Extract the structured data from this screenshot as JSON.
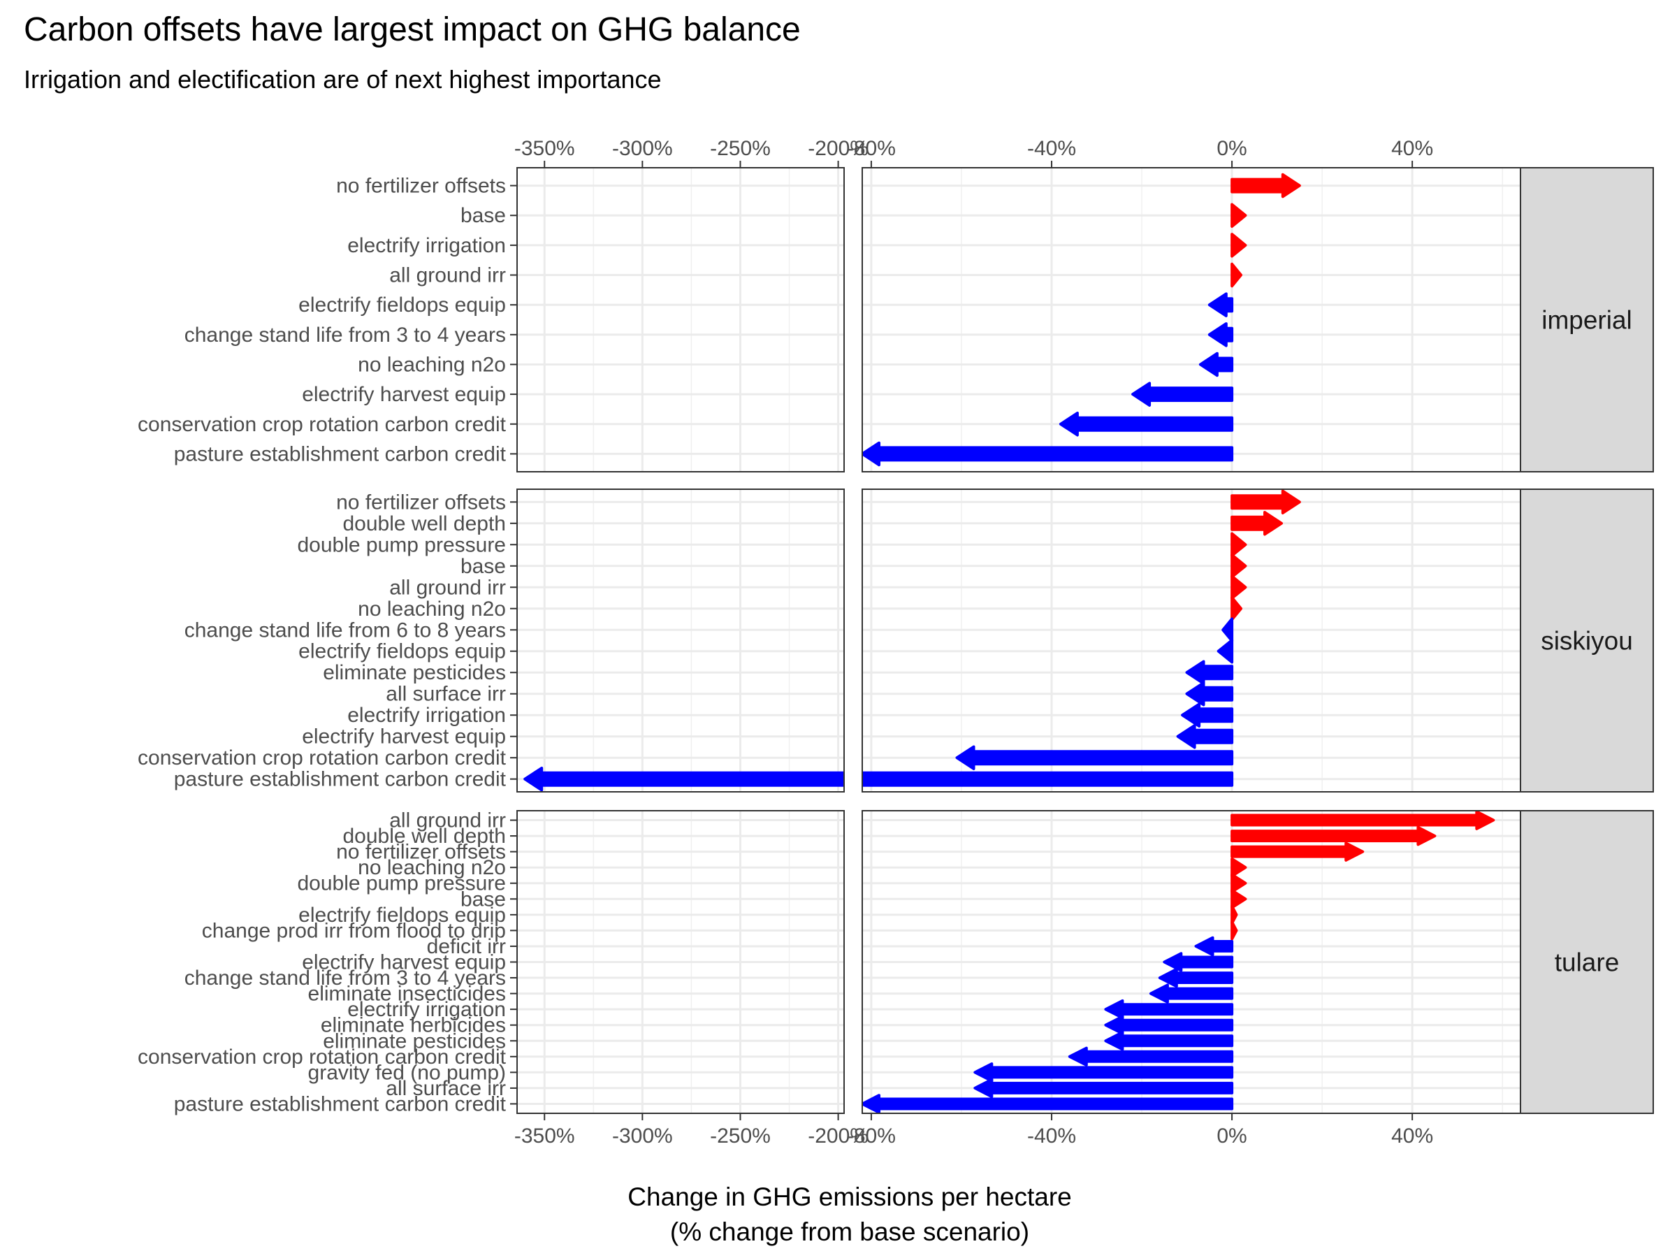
{
  "chart_data": {
    "type": "bar",
    "title": "Carbon offsets have largest impact on GHG balance",
    "subtitle": "Irrigation and electification are of next highest importance",
    "xlabel_lines": [
      "Change in GHG emissions per hectare",
      "(% change from base scenario)"
    ],
    "x_axis_left": {
      "range": [
        -364,
        -197
      ],
      "ticks": [
        -350,
        -300,
        -250,
        -200
      ],
      "tick_labels": [
        "-350%",
        "-300%",
        "-250%",
        "-200%"
      ]
    },
    "x_axis_right": {
      "range": [
        -82,
        64
      ],
      "ticks": [
        -80,
        -40,
        0,
        40
      ],
      "tick_labels": [
        "-80%",
        "-40%",
        "0%",
        "40%"
      ]
    },
    "grid": true,
    "legend": "none",
    "colors": {
      "increase": "#ff0000",
      "decrease": "#0000ff"
    },
    "panels": [
      {
        "name": "imperial",
        "categories": [
          "no fertilizer offsets",
          "base",
          "electrify irrigation",
          "all ground irr",
          "electrify fieldops equip",
          "change stand life from 3 to 4 years",
          "no leaching n2o",
          "electrify harvest equip",
          "conservation crop rotation carbon credit",
          "pasture establishment carbon credit"
        ],
        "values": [
          15,
          3,
          3,
          2,
          -5,
          -5,
          -7,
          -22,
          -38,
          -82
        ]
      },
      {
        "name": "siskiyou",
        "categories": [
          "no fertilizer offsets",
          "double well depth",
          "double pump pressure",
          "base",
          "all ground irr",
          "no leaching n2o",
          "change stand life from 6 to 8 years",
          "electrify fieldops equip",
          "eliminate pesticides",
          "all surface irr",
          "electrify irrigation",
          "electrify harvest equip",
          "conservation crop rotation carbon credit",
          "pasture establishment carbon credit"
        ],
        "values": [
          15,
          11,
          3,
          3,
          3,
          2,
          -2,
          -3,
          -10,
          -10,
          -11,
          -12,
          -61,
          -360
        ]
      },
      {
        "name": "tulare",
        "categories": [
          "all ground irr",
          "double well depth",
          "no fertilizer offsets",
          "no leaching n2o",
          "double pump pressure",
          "base",
          "electrify fieldops equip",
          "change prod irr from flood to drip",
          "deficit irr",
          "electrify harvest equip",
          "change stand life from 3 to 4 years",
          "eliminate insecticides",
          "electrify irrigation",
          "eliminate herbicides",
          "eliminate pesticides",
          "conservation crop rotation carbon credit",
          "gravity fed (no pump)",
          "all surface irr",
          "pasture establishment carbon credit"
        ],
        "values": [
          58,
          45,
          29,
          3,
          3,
          3,
          1,
          1,
          -8,
          -15,
          -16,
          -18,
          -28,
          -28,
          -28,
          -36,
          -57,
          -57,
          -82
        ]
      }
    ]
  }
}
